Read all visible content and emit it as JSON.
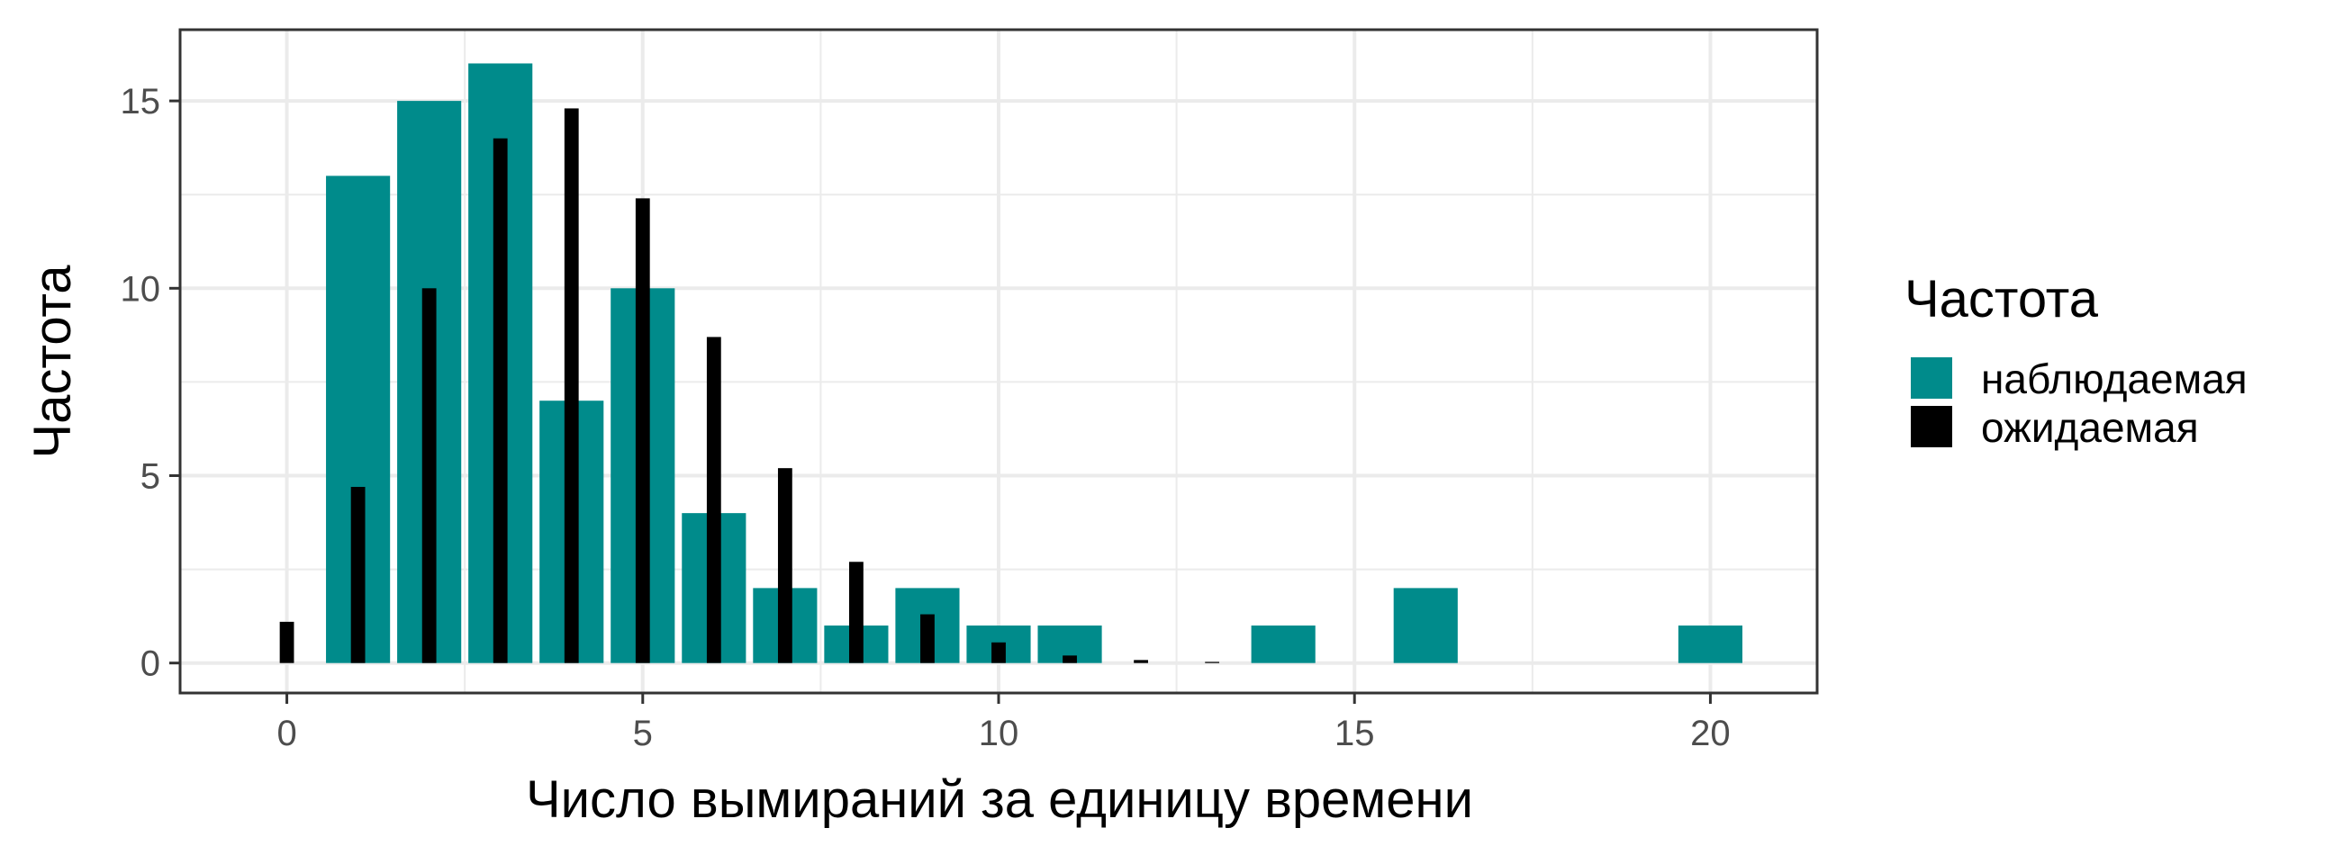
{
  "chart_data": {
    "type": "bar",
    "xlabel": "Число вымираний за единицу времени",
    "ylabel": "Частота",
    "xlim": [
      -1.5,
      21.5
    ],
    "ylim": [
      -0.8,
      16.9
    ],
    "x_ticks": [
      0,
      5,
      10,
      15,
      20
    ],
    "x_tick_labels": [
      "0",
      "5",
      "10",
      "15",
      "20"
    ],
    "y_ticks": [
      0,
      5,
      10,
      15
    ],
    "y_tick_labels": [
      "0",
      "5",
      "10",
      "15"
    ],
    "grid": true,
    "legend_position": "right",
    "legend_title": "Частота",
    "series": [
      {
        "name": "наблюдаемая",
        "color": "#008b8b",
        "style": "wide-bar",
        "x": [
          1,
          2,
          3,
          4,
          5,
          6,
          7,
          8,
          9,
          10,
          11,
          14,
          16,
          20
        ],
        "values": [
          13,
          15,
          16,
          7,
          10,
          4,
          2,
          1,
          2,
          1,
          1,
          1,
          2,
          1
        ]
      },
      {
        "name": "ожидаемая",
        "color": "#000000",
        "style": "narrow-bar",
        "x": [
          0,
          1,
          2,
          3,
          4,
          5,
          6,
          7,
          8,
          9,
          10,
          11,
          12,
          13
        ],
        "values": [
          1.1,
          4.7,
          10.0,
          14.0,
          14.8,
          12.4,
          8.7,
          5.2,
          2.7,
          1.3,
          0.55,
          0.2,
          0.08,
          0.03
        ]
      }
    ]
  }
}
